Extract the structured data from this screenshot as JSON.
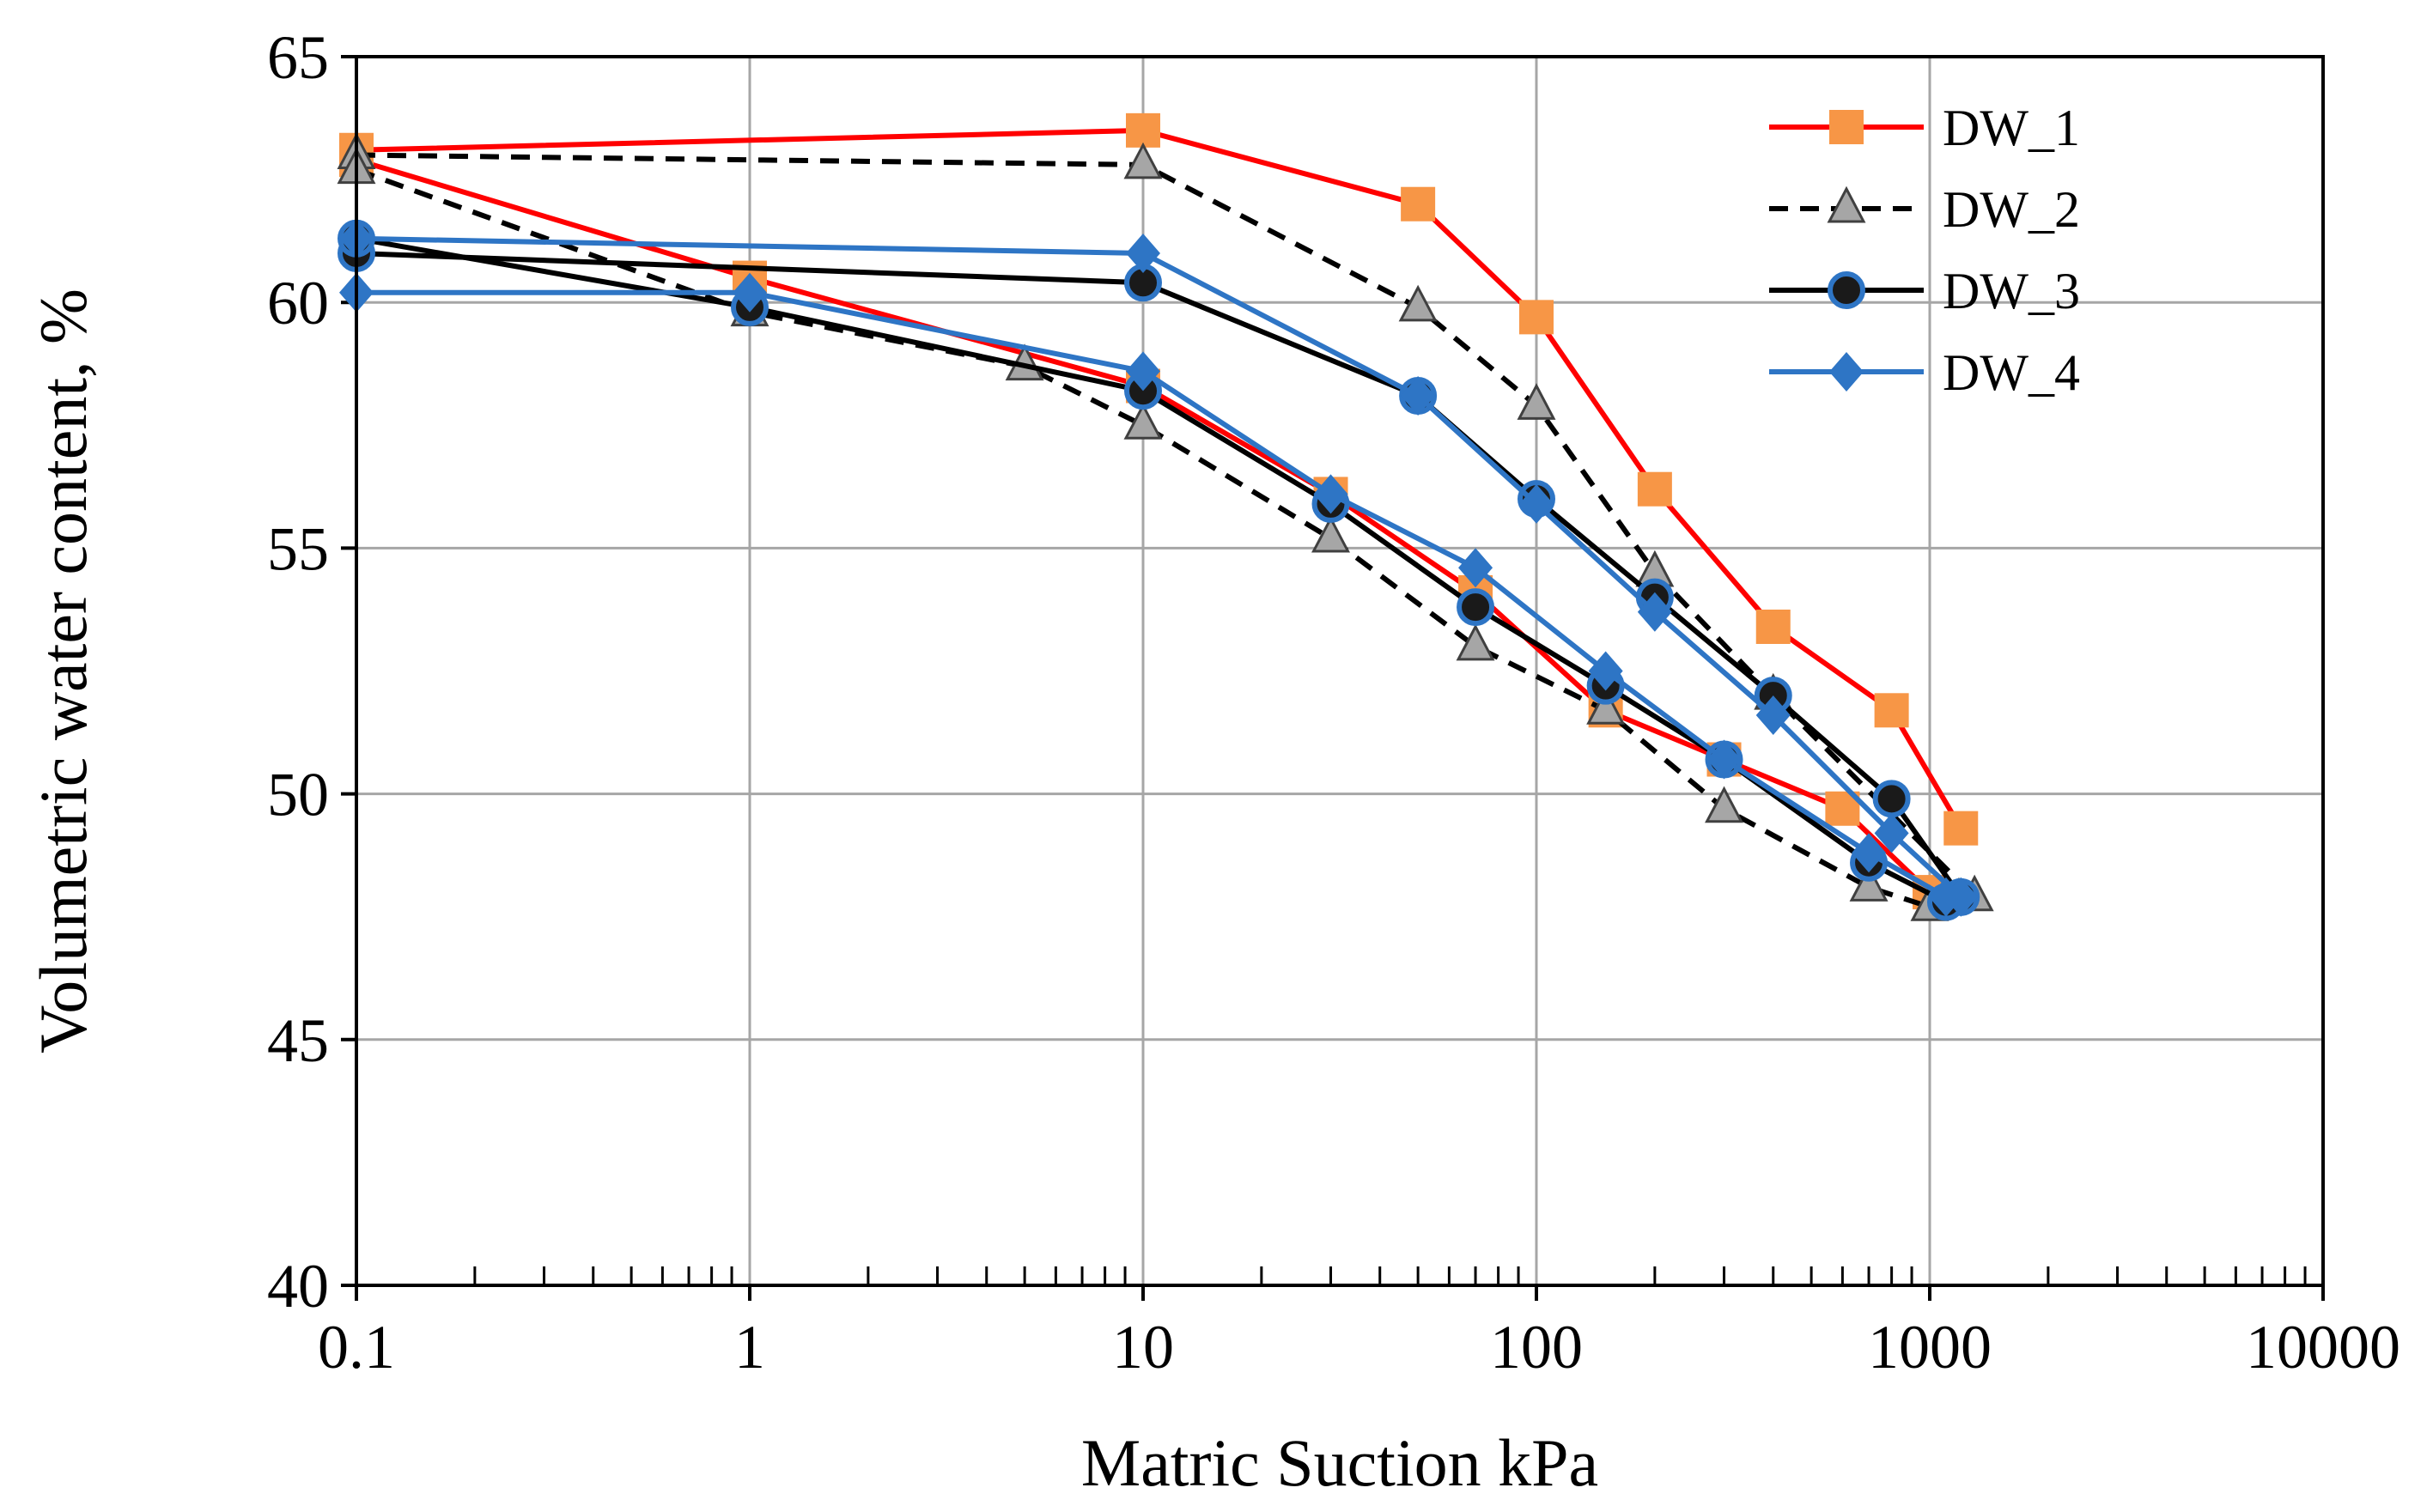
{
  "chart_data": {
    "type": "line",
    "title": "",
    "xlabel": "Matric Suction kPa",
    "ylabel": "Volumetric water content, %",
    "xscale": "log",
    "xlim": [
      0.1,
      10000
    ],
    "ylim": [
      40,
      65
    ],
    "x_ticks": [
      0.1,
      1,
      10,
      100,
      1000,
      10000
    ],
    "x_tick_labels": [
      "0.1",
      "1",
      "10",
      "100",
      "1000",
      "10000"
    ],
    "y_ticks": [
      40,
      45,
      50,
      55,
      60,
      65
    ],
    "y_tick_labels": [
      "40",
      "45",
      "50",
      "55",
      "60",
      "65"
    ],
    "grid": true,
    "legend_position": "top-right",
    "series": [
      {
        "name": "DW_1",
        "color": "#ff0000",
        "marker_color": "#f79646",
        "marker": "square",
        "dash": "solid",
        "branches": [
          [
            [
              0.1,
              63.1
            ],
            [
              10,
              63.5
            ],
            [
              50,
              62.0
            ],
            [
              100,
              59.7
            ],
            [
              200,
              56.2
            ],
            [
              400,
              53.4
            ],
            [
              800,
              51.7
            ],
            [
              1200,
              49.3
            ]
          ],
          [
            [
              0.1,
              62.9
            ],
            [
              1,
              60.5
            ],
            [
              10,
              58.3
            ],
            [
              30,
              56.1
            ],
            [
              70,
              54.1
            ],
            [
              150,
              51.7
            ],
            [
              300,
              50.7
            ],
            [
              600,
              49.7
            ],
            [
              1000,
              48.0
            ]
          ]
        ]
      },
      {
        "name": "DW_2",
        "color": "#000000",
        "marker_color": "#a6a6a6",
        "marker": "triangle",
        "dash": "dashed",
        "branches": [
          [
            [
              0.1,
              63.0
            ],
            [
              10,
              62.8
            ],
            [
              50,
              59.9
            ],
            [
              100,
              57.9
            ],
            [
              200,
              54.5
            ],
            [
              400,
              52.0
            ],
            [
              1300,
              47.9
            ]
          ],
          [
            [
              0.1,
              62.7
            ],
            [
              1,
              59.8
            ],
            [
              5,
              58.7
            ],
            [
              10,
              57.5
            ],
            [
              30,
              55.2
            ],
            [
              70,
              53.0
            ],
            [
              150,
              51.7
            ],
            [
              300,
              49.7
            ],
            [
              700,
              48.1
            ],
            [
              1000,
              47.7
            ]
          ]
        ]
      },
      {
        "name": "DW_3",
        "color": "#000000",
        "marker_color": "#1f6fb5",
        "marker": "circle",
        "dash": "solid",
        "branches": [
          [
            [
              0.1,
              61.0
            ],
            [
              10,
              60.4
            ],
            [
              50,
              58.1
            ],
            [
              100,
              56.0
            ],
            [
              200,
              54.0
            ],
            [
              400,
              52.0
            ],
            [
              800,
              49.9
            ],
            [
              1200,
              47.9
            ]
          ],
          [
            [
              0.1,
              61.3
            ],
            [
              1,
              59.9
            ],
            [
              10,
              58.2
            ],
            [
              30,
              55.9
            ],
            [
              70,
              53.8
            ],
            [
              150,
              52.2
            ],
            [
              300,
              50.7
            ],
            [
              700,
              48.6
            ],
            [
              1100,
              47.8
            ]
          ]
        ]
      },
      {
        "name": "DW_4",
        "color": "#2e75c5",
        "marker_color": "#2e75c5",
        "marker": "diamond",
        "dash": "solid",
        "branches": [
          [
            [
              0.1,
              61.3
            ],
            [
              10,
              61.0
            ],
            [
              50,
              58.1
            ],
            [
              100,
              55.9
            ],
            [
              200,
              53.7
            ],
            [
              400,
              51.6
            ],
            [
              800,
              49.2
            ],
            [
              1200,
              47.9
            ]
          ],
          [
            [
              0.1,
              60.2
            ],
            [
              1,
              60.2
            ],
            [
              10,
              58.6
            ],
            [
              30,
              56.1
            ],
            [
              70,
              54.6
            ],
            [
              150,
              52.5
            ],
            [
              300,
              50.7
            ],
            [
              700,
              48.8
            ],
            [
              1100,
              47.9
            ]
          ]
        ]
      }
    ]
  }
}
